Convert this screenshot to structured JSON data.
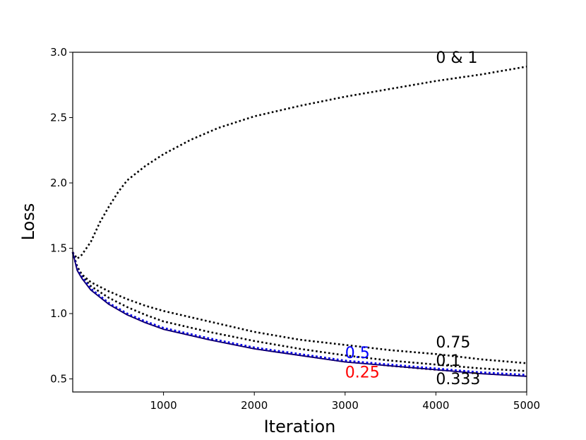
{
  "chart_data": {
    "type": "line",
    "xlabel": "Iteration",
    "ylabel": "Loss",
    "xlim": [
      0,
      5000
    ],
    "ylim": [
      0.4,
      3.0
    ],
    "xticks": [
      1000,
      2000,
      3000,
      4000,
      5000
    ],
    "yticks": [
      0.5,
      1.0,
      1.5,
      2.0,
      2.5,
      3.0
    ],
    "ytick_labels": [
      "0.5",
      "1.0",
      "1.5",
      "2.0",
      "2.5",
      "3.0"
    ],
    "grid": false,
    "series": [
      {
        "label": "0 & 1",
        "color": "#000000",
        "style": "dotted",
        "x": [
          0,
          50,
          100,
          200,
          300,
          400,
          500,
          600,
          800,
          1000,
          1300,
          1600,
          2000,
          2500,
          3000,
          3500,
          4000,
          4500,
          5000
        ],
        "y": [
          1.47,
          1.42,
          1.45,
          1.55,
          1.7,
          1.82,
          1.93,
          2.02,
          2.13,
          2.22,
          2.33,
          2.42,
          2.51,
          2.59,
          2.66,
          2.72,
          2.78,
          2.83,
          2.89
        ],
        "label_at": [
          4000,
          2.92
        ]
      },
      {
        "label": "0.75",
        "color": "#000000",
        "style": "dotted",
        "x": [
          0,
          50,
          100,
          200,
          400,
          600,
          800,
          1000,
          1500,
          2000,
          2500,
          3000,
          3500,
          4000,
          4500,
          5000
        ],
        "y": [
          1.47,
          1.36,
          1.3,
          1.24,
          1.17,
          1.11,
          1.06,
          1.02,
          0.94,
          0.86,
          0.8,
          0.76,
          0.72,
          0.69,
          0.65,
          0.62
        ],
        "label_at": [
          4000,
          0.74
        ]
      },
      {
        "label": "0.1",
        "color": "#000000",
        "style": "dotted",
        "x": [
          0,
          50,
          100,
          200,
          400,
          600,
          800,
          1000,
          1500,
          2000,
          2500,
          3000,
          3500,
          4000,
          4500,
          5000
        ],
        "y": [
          1.47,
          1.35,
          1.29,
          1.21,
          1.12,
          1.05,
          0.99,
          0.94,
          0.86,
          0.79,
          0.73,
          0.68,
          0.64,
          0.61,
          0.58,
          0.56
        ],
        "label_at": [
          4000,
          0.6
        ]
      },
      {
        "label": "0.333",
        "color": "#000000",
        "style": "dotted",
        "x": [
          0,
          50,
          100,
          200,
          400,
          600,
          800,
          1000,
          1500,
          2000,
          2500,
          3000,
          3500,
          4000,
          4500,
          5000
        ],
        "y": [
          1.47,
          1.34,
          1.28,
          1.19,
          1.08,
          1.0,
          0.94,
          0.89,
          0.81,
          0.74,
          0.69,
          0.64,
          0.6,
          0.57,
          0.55,
          0.53
        ],
        "label_at": [
          4000,
          0.46
        ]
      },
      {
        "label": "0.5",
        "color": "#0000ff",
        "style": "dotted",
        "x": [
          0,
          50,
          100,
          200,
          400,
          600,
          800,
          1000,
          1500,
          2000,
          2500,
          3000,
          3500,
          4000,
          4500,
          5000
        ],
        "y": [
          1.47,
          1.34,
          1.28,
          1.19,
          1.08,
          1.0,
          0.94,
          0.89,
          0.81,
          0.74,
          0.69,
          0.64,
          0.61,
          0.58,
          0.55,
          0.53
        ],
        "label_at": [
          3000,
          0.66
        ]
      },
      {
        "label": "0.25",
        "color": "#ff0000",
        "style": "solid",
        "x": [
          0,
          50,
          100,
          200,
          400,
          600,
          800,
          1000,
          1500,
          2000,
          2500,
          3000,
          3500,
          4000,
          4500,
          5000
        ],
        "y": [
          1.47,
          1.33,
          1.27,
          1.18,
          1.07,
          0.99,
          0.93,
          0.88,
          0.8,
          0.73,
          0.68,
          0.63,
          0.6,
          0.57,
          0.54,
          0.52
        ],
        "label_at": [
          3000,
          0.51
        ]
      },
      {
        "label": "",
        "color": "#000080",
        "style": "solid",
        "x": [
          0,
          50,
          100,
          200,
          400,
          600,
          800,
          1000,
          1500,
          2000,
          2500,
          3000,
          3500,
          4000,
          4500,
          5000
        ],
        "y": [
          1.47,
          1.33,
          1.27,
          1.18,
          1.07,
          0.99,
          0.93,
          0.88,
          0.8,
          0.73,
          0.68,
          0.63,
          0.6,
          0.57,
          0.54,
          0.52
        ]
      }
    ]
  }
}
